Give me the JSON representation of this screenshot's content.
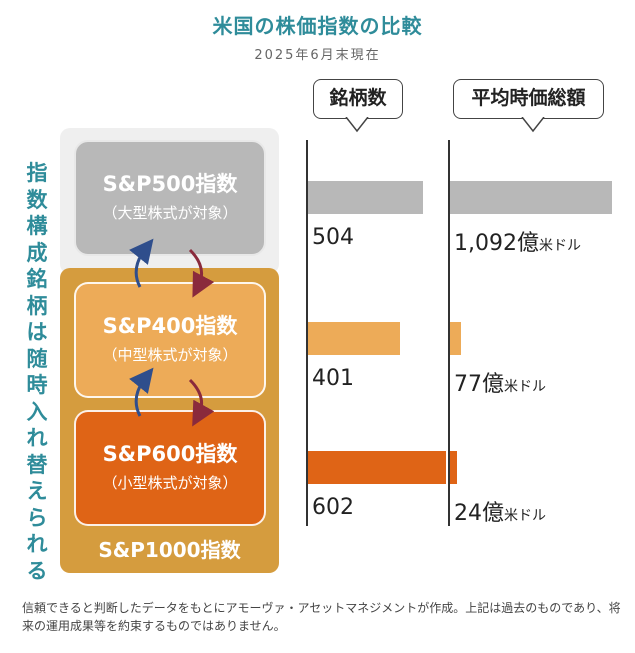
{
  "title": "米国の株価指数の比較",
  "subtitle": "2025年6月末現在",
  "vertical_label": "指数構成銘柄は随時入れ替えられる",
  "indices": [
    {
      "name": "S&P500指数",
      "sub": "（大型株式が対象）"
    },
    {
      "name": "S&P400指数",
      "sub": "（中型株式が対象）"
    },
    {
      "name": "S&P600指数",
      "sub": "（小型株式が対象）"
    }
  ],
  "group_label": "S&P1000指数",
  "colors": {
    "gray": "#b8b8b8",
    "mid": "#edab58",
    "small": "#df6416",
    "teal": "#2f8c9a"
  },
  "chart_data": {
    "type": "bar",
    "categories": [
      "S&P500指数",
      "S&P400指数",
      "S&P600指数"
    ],
    "series": [
      {
        "name": "銘柄数",
        "values": [
          504,
          401,
          602
        ],
        "labels": [
          "504",
          "401",
          "602"
        ],
        "unit": ""
      },
      {
        "name": "平均時価総額",
        "values": [
          1092,
          77,
          24
        ],
        "labels": [
          "1,092億",
          "77億",
          "24億"
        ],
        "unit": "米ドル"
      }
    ]
  },
  "footnote": "信頼できると判断したデータをもとにアモーヴァ・アセットマネジメントが作成。上記は過去のものであり、将来の運用成果等を約束するものではありません。"
}
